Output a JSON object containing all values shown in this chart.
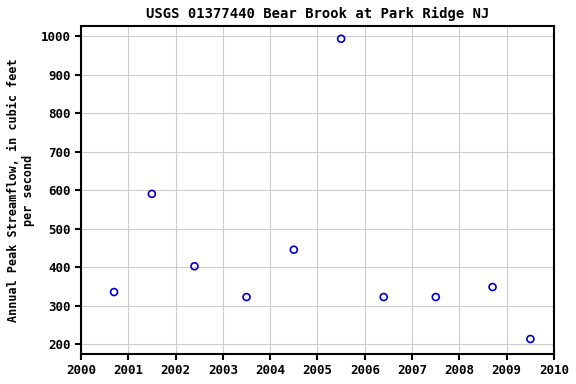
{
  "title": "USGS 01377440 Bear Brook at Park Ridge NJ",
  "ylabel_line1": "Annual Peak Streamflow, in cubic feet",
  "ylabel_line2": "per second",
  "years": [
    2000.7,
    2001.5,
    2002.4,
    2003.5,
    2004.5,
    2005.5,
    2006.4,
    2007.5,
    2008.7,
    2009.5
  ],
  "values": [
    335,
    590,
    402,
    322,
    445,
    993,
    322,
    322,
    348,
    213
  ],
  "xlim": [
    2000,
    2010
  ],
  "ylim": [
    175,
    1025
  ],
  "yticks": [
    200,
    300,
    400,
    500,
    600,
    700,
    800,
    900,
    1000
  ],
  "xticks": [
    2000,
    2001,
    2002,
    2003,
    2004,
    2005,
    2006,
    2007,
    2008,
    2009,
    2010
  ],
  "marker_color": "#0000cc",
  "marker_size": 5,
  "marker_linewidth": 1.2,
  "bg_color": "#ffffff",
  "grid_color": "#cccccc",
  "title_fontsize": 10,
  "label_fontsize": 8.5,
  "tick_fontsize": 9,
  "spine_color": "#000000",
  "spine_linewidth": 1.5
}
